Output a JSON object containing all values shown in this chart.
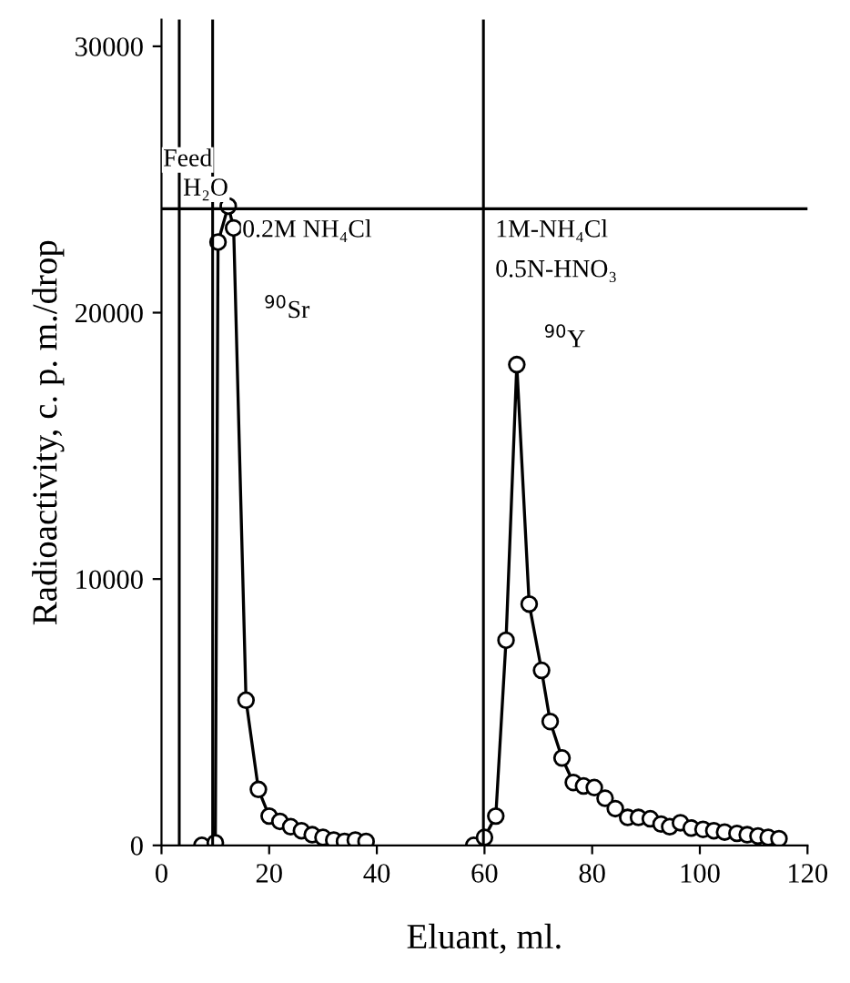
{
  "chart_data": {
    "type": "line",
    "xlabel": "Eluant, ml.",
    "ylabel": "Radioactivity, c. p. m./drop",
    "xlim": [
      0,
      120
    ],
    "ylim": [
      0,
      31000
    ],
    "xticks": [
      0,
      20,
      40,
      60,
      80,
      100,
      120
    ],
    "yticks": [
      0,
      10000,
      20000,
      30000
    ],
    "marker": "circle",
    "line_style": "solid",
    "grid": false,
    "legend": false,
    "series": [
      {
        "color": "#000000",
        "x": [
          7.5,
          10,
          10.5,
          12.4,
          13.4,
          15.7,
          18,
          20,
          22,
          24,
          26,
          28,
          30,
          32,
          34,
          36,
          38
        ],
        "values": [
          0,
          100,
          22650,
          24000,
          23180,
          5450,
          2100,
          1100,
          900,
          700,
          550,
          400,
          300,
          200,
          150,
          200,
          150
        ]
      },
      {
        "color": "#000000",
        "x": [
          58,
          60,
          62.1,
          64,
          66,
          68.3,
          70.6,
          72.2,
          74.4,
          76.5,
          78.4,
          80.4,
          82.4,
          84.3,
          86.6,
          88.6,
          90.8,
          92.8,
          94.4,
          96.4,
          98.4,
          100.6,
          102.6,
          104.6,
          106.9,
          108.8,
          110.8,
          112.7,
          114.7
        ],
        "values": [
          0,
          300,
          1100,
          7700,
          18050,
          9060,
          6570,
          4650,
          3280,
          2360,
          2230,
          2170,
          1770,
          1380,
          1050,
          1050,
          1000,
          800,
          700,
          850,
          650,
          600,
          550,
          500,
          450,
          400,
          350,
          300,
          250
        ]
      }
    ],
    "ref_lines": [
      {
        "axis": "x",
        "value": 3.3,
        "color": "#000000"
      },
      {
        "axis": "x",
        "value": 9.5,
        "color": "#000000"
      },
      {
        "axis": "x",
        "value": 59.8,
        "color": "#000000"
      },
      {
        "axis": "y",
        "value": 23900,
        "color": "#000000"
      }
    ],
    "annotations": [
      "Feed",
      "H₂O",
      "0.2M NH₄Cl",
      "$^{90}$Sr",
      "$^{90}$Y",
      "1M-NH₄Cl",
      "0.5N-HNO₃"
    ]
  }
}
